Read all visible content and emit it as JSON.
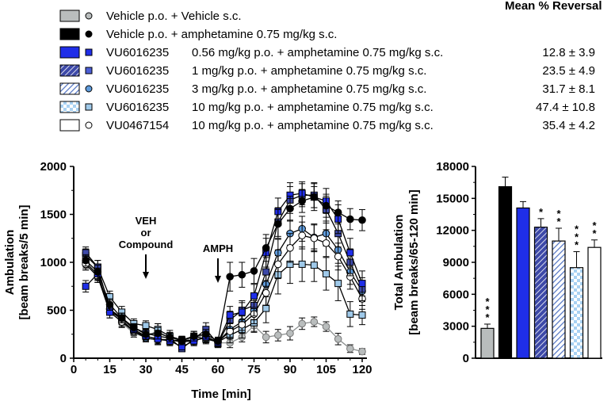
{
  "legend": {
    "header": "Mean % Reversal",
    "entries": [
      {
        "compound": "Vehicle p.o. + Vehicle s.c.",
        "dose": "",
        "reversal": "",
        "fill": "#b9bdbd",
        "pattern": "solid",
        "marker_fill": "#b9bdbd"
      },
      {
        "compound": "Vehicle p.o. + amphetamine 0.75 mg/kg s.c.",
        "dose": "",
        "reversal": "",
        "fill": "#000000",
        "pattern": "solid",
        "marker_fill": "#000000"
      },
      {
        "compound": "VU6016235",
        "dose": "0.56 mg/kg p.o. + amphetamine 0.75 mg/kg s.c.",
        "reversal": "12.8 ±  3.9",
        "fill": "#1f2ee8",
        "pattern": "solid",
        "marker_fill": "#1f2ee8"
      },
      {
        "compound": "VU6016235",
        "dose": "1 mg/kg p.o. + amphetamine 0.75 mg/kg s.c.",
        "reversal": "23.5 ±  4.9",
        "fill": "#3d49a8",
        "pattern": "hatch-dense",
        "marker_fill": "#4b5ed6"
      },
      {
        "compound": "VU6016235",
        "dose": "3 mg/kg p.o. + amphetamine 0.75 mg/kg s.c.",
        "reversal": "31.7 ±  8.1",
        "fill": "#5f86cc",
        "pattern": "hatch-light",
        "marker_fill": "#5f9bdc"
      },
      {
        "compound": "VU6016235",
        "dose": "10 mg/kg p.o. + amphetamine 0.75 mg/kg s.c.",
        "reversal": "47.4 ± 10.8",
        "fill": "#a9d2f3",
        "pattern": "check",
        "marker_fill": "#9fc9e9"
      },
      {
        "compound": "VU0467154",
        "dose": "10 mg/kg p.o. + amphetamine 0.75 mg/kg s.c.",
        "reversal": "35.4 ±  4.2",
        "fill": "#ffffff",
        "pattern": "solid",
        "marker_fill": "#ffffff"
      }
    ]
  },
  "chart_data": [
    {
      "type": "line",
      "xlabel": "Time [min]",
      "ylabel": "Ambulation",
      "ylabel2": "[beam breaks/5 min]",
      "xlim": [
        0,
        120
      ],
      "ylim": [
        0,
        2000
      ],
      "xticks": [
        0,
        15,
        30,
        45,
        60,
        75,
        90,
        105,
        120
      ],
      "yticks": [
        0,
        500,
        1000,
        1500,
        2000
      ],
      "annotations": [
        {
          "lines": [
            "VEH",
            "or",
            "Compound"
          ],
          "x": 30
        },
        {
          "lines": [
            "AMPH"
          ],
          "x": 60
        }
      ],
      "x": [
        5,
        10,
        15,
        20,
        25,
        30,
        35,
        40,
        45,
        50,
        55,
        60,
        65,
        70,
        75,
        80,
        85,
        90,
        95,
        100,
        105,
        110,
        115,
        120
      ],
      "series": [
        {
          "name": "Vehicle p.o. + Vehicle s.c.",
          "color": "#b9bdbd",
          "marker": "circle",
          "values": [
            980,
            850,
            520,
            370,
            260,
            220,
            290,
            200,
            170,
            220,
            240,
            160,
            160,
            220,
            340,
            220,
            240,
            260,
            360,
            380,
            330,
            200,
            100,
            70
          ],
          "errors": [
            60,
            60,
            60,
            50,
            40,
            40,
            70,
            50,
            40,
            60,
            50,
            40,
            50,
            50,
            60,
            60,
            60,
            70,
            60,
            50,
            50,
            60,
            40,
            30
          ]
        },
        {
          "name": "Vehicle p.o. + amphetamine 0.75 mg/kg s.c.",
          "color": "#000000",
          "marker": "circle",
          "values": [
            1020,
            900,
            560,
            420,
            320,
            250,
            260,
            220,
            180,
            230,
            250,
            180,
            850,
            870,
            910,
            1150,
            1400,
            1560,
            1640,
            1680,
            1590,
            1520,
            1450,
            1440
          ],
          "errors": [
            60,
            70,
            60,
            50,
            40,
            50,
            60,
            50,
            40,
            50,
            50,
            40,
            150,
            130,
            130,
            140,
            150,
            130,
            120,
            110,
            120,
            120,
            110,
            110
          ]
        },
        {
          "name": "VU6016235 0.56 mg/kg p.o. + amphetamine 0.75 mg/kg s.c.",
          "color": "#1f2ee8",
          "marker": "square",
          "values": [
            750,
            880,
            480,
            420,
            300,
            230,
            200,
            180,
            120,
            180,
            220,
            160,
            450,
            480,
            650,
            1100,
            1530,
            1700,
            1720,
            1680,
            1640,
            1450,
            1100,
            780
          ],
          "errors": [
            60,
            60,
            60,
            50,
            40,
            40,
            50,
            50,
            30,
            50,
            50,
            40,
            90,
            100,
            120,
            150,
            140,
            130,
            120,
            140,
            130,
            150,
            150,
            130
          ]
        },
        {
          "name": "VU6016235 1 mg/kg p.o. + amphetamine 0.75 mg/kg s.c.",
          "color": "#3d49a8",
          "marker": "square",
          "values": [
            1100,
            950,
            510,
            420,
            320,
            260,
            230,
            210,
            100,
            200,
            300,
            150,
            400,
            500,
            550,
            900,
            1420,
            1650,
            1700,
            1700,
            1550,
            1300,
            1000,
            720
          ],
          "errors": [
            60,
            70,
            60,
            50,
            40,
            50,
            60,
            50,
            30,
            50,
            70,
            40,
            90,
            100,
            110,
            150,
            150,
            140,
            120,
            130,
            140,
            140,
            140,
            120
          ]
        },
        {
          "name": "VU6016235 3 mg/kg p.o. + amphetamine 0.75 mg/kg s.c.",
          "color": "#5f9bdc",
          "marker": "circle",
          "values": [
            1000,
            870,
            510,
            400,
            280,
            210,
            190,
            190,
            170,
            180,
            220,
            170,
            300,
            380,
            500,
            770,
            1100,
            1300,
            1350,
            1260,
            1300,
            1130,
            900,
            700
          ],
          "errors": [
            60,
            60,
            60,
            50,
            40,
            40,
            50,
            50,
            40,
            40,
            50,
            40,
            80,
            90,
            100,
            130,
            140,
            140,
            130,
            140,
            130,
            140,
            130,
            110
          ]
        },
        {
          "name": "VU6016235 10 mg/kg p.o. + amphetamine 0.75 mg/kg s.c.",
          "color": "#9fc9e9",
          "marker": "square",
          "values": [
            1070,
            950,
            640,
            480,
            360,
            340,
            300,
            230,
            190,
            230,
            200,
            170,
            240,
            300,
            370,
            520,
            870,
            980,
            980,
            970,
            880,
            780,
            460,
            450
          ],
          "errors": [
            70,
            70,
            60,
            60,
            50,
            50,
            60,
            60,
            40,
            50,
            50,
            40,
            80,
            90,
            100,
            150,
            200,
            200,
            180,
            170,
            170,
            180,
            130,
            100
          ]
        },
        {
          "name": "VU0467154 10 mg/kg p.o. + amphetamine 0.75 mg/kg s.c.",
          "color": "#ffffff",
          "marker": "circle",
          "values": [
            980,
            850,
            480,
            380,
            280,
            230,
            200,
            190,
            180,
            190,
            210,
            170,
            280,
            350,
            460,
            680,
            980,
            1150,
            1280,
            1250,
            1200,
            1060,
            850,
            620
          ],
          "errors": [
            60,
            60,
            60,
            50,
            40,
            40,
            50,
            50,
            40,
            40,
            50,
            40,
            80,
            90,
            100,
            130,
            150,
            150,
            140,
            140,
            140,
            140,
            130,
            110
          ]
        }
      ]
    },
    {
      "type": "bar",
      "ylabel": "Total Ambulation",
      "ylabel2": "[beam breaks/65-120 min]",
      "ylim": [
        0,
        18000
      ],
      "yticks": [
        0,
        3000,
        6000,
        9000,
        12000,
        15000,
        18000
      ],
      "values": [
        2800,
        16100,
        14100,
        12300,
        11000,
        8500,
        10400
      ],
      "errors": [
        400,
        900,
        600,
        800,
        1200,
        1500,
        700
      ],
      "significance": [
        "* * *",
        "",
        "",
        "*",
        "* *",
        "* * *",
        "* *"
      ],
      "fills": [
        "#b9bdbd",
        "#000000",
        "#1f2ee8",
        "#3d49a8",
        "#5f86cc",
        "#a9d2f3",
        "#ffffff"
      ],
      "patterns": [
        "solid",
        "solid",
        "solid",
        "hatch-dense",
        "hatch-light",
        "check",
        "solid"
      ]
    }
  ]
}
